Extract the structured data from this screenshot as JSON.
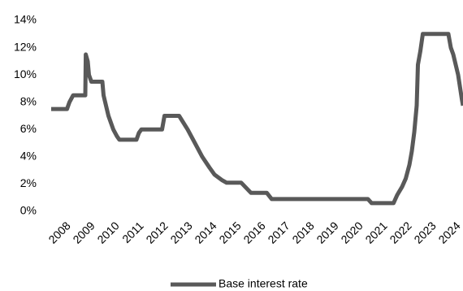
{
  "chart_data": {
    "type": "line",
    "x": [
      2007.4,
      2008.05,
      2008.15,
      2008.3,
      2008.8,
      2008.82,
      2008.9,
      2008.95,
      2009.05,
      2009.5,
      2009.55,
      2009.65,
      2009.75,
      2009.85,
      2009.95,
      2010.1,
      2010.2,
      2010.9,
      2011.0,
      2011.1,
      2011.95,
      2012.05,
      2012.65,
      2013.0,
      2013.3,
      2013.6,
      2013.9,
      2014.1,
      2014.4,
      2014.6,
      2015.2,
      2015.6,
      2016.25,
      2016.45,
      2020.4,
      2020.55,
      2021.45,
      2021.6,
      2021.8,
      2021.95,
      2022.1,
      2022.2,
      2022.3,
      2022.4,
      2022.45,
      2022.55,
      2022.65,
      2023.7,
      2023.8,
      2023.9,
      2024.0,
      2024.1,
      2024.25,
      2024.3
    ],
    "series": [
      {
        "name": "Base interest rate",
        "color": "#595959",
        "values": [
          7.5,
          7.5,
          8.0,
          8.5,
          8.5,
          11.5,
          11.0,
          10.0,
          9.5,
          9.5,
          8.5,
          7.75,
          7.0,
          6.5,
          6.0,
          5.5,
          5.25,
          5.25,
          5.75,
          6.0,
          6.0,
          7.0,
          7.0,
          6.0,
          5.0,
          4.0,
          3.2,
          2.7,
          2.3,
          2.1,
          2.1,
          1.35,
          1.35,
          0.9,
          0.9,
          0.6,
          0.6,
          1.2,
          1.8,
          2.4,
          3.4,
          4.4,
          5.8,
          7.75,
          10.75,
          11.75,
          13.0,
          13.0,
          12.0,
          11.5,
          10.75,
          10.0,
          8.25,
          7.75
        ]
      }
    ],
    "xlim": [
      2007.4,
      2024.3
    ],
    "xticks": [
      2008,
      2009,
      2010,
      2011,
      2012,
      2013,
      2014,
      2015,
      2016,
      2017,
      2018,
      2019,
      2020,
      2021,
      2022,
      2023,
      2024
    ],
    "ylim": [
      0,
      14
    ],
    "yticks": [
      {
        "value": 0,
        "label": "0%"
      },
      {
        "value": 2,
        "label": "2%"
      },
      {
        "value": 4,
        "label": "4%"
      },
      {
        "value": 6,
        "label": "6%"
      },
      {
        "value": 8,
        "label": "8%"
      },
      {
        "value": 10,
        "label": "10%"
      },
      {
        "value": 12,
        "label": "12%"
      },
      {
        "value": 14,
        "label": "14%"
      }
    ],
    "legend": "bottom"
  }
}
